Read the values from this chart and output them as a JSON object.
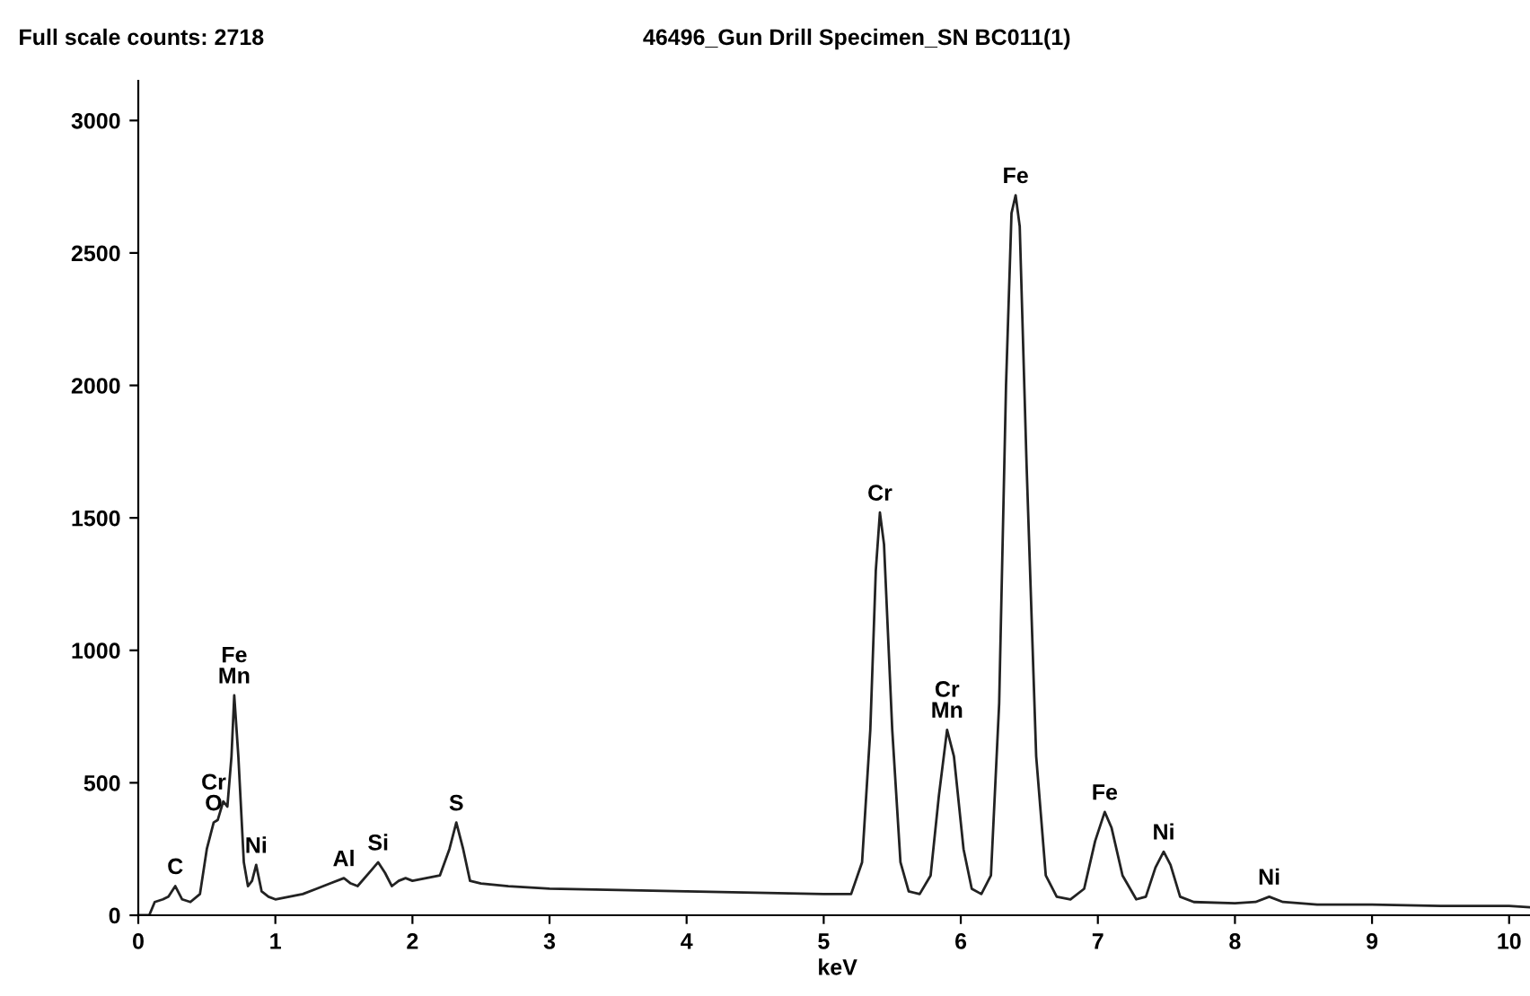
{
  "chart_data": {
    "type": "line",
    "title": "46496_Gun Drill Specimen_SN BC011(1)",
    "xlabel": "keV",
    "annotations": [
      "Full scale counts: 2718",
      {
        "text": "C",
        "x": 0.27,
        "y": 110
      },
      {
        "text": "Cr\nO",
        "x": 0.55,
        "y": 350
      },
      {
        "text": "Fe\nMn",
        "x": 0.7,
        "y": 830
      },
      {
        "text": "Ni",
        "x": 0.86,
        "y": 190
      },
      {
        "text": "Al",
        "x": 1.5,
        "y": 140
      },
      {
        "text": "Si",
        "x": 1.75,
        "y": 200
      },
      {
        "text": "S",
        "x": 2.32,
        "y": 350
      },
      {
        "text": "Cr",
        "x": 5.41,
        "y": 1520
      },
      {
        "text": "Cr\nMn",
        "x": 5.9,
        "y": 700
      },
      {
        "text": "Fe",
        "x": 6.4,
        "y": 2718
      },
      {
        "text": "Fe",
        "x": 7.05,
        "y": 390
      },
      {
        "text": "Ni",
        "x": 7.48,
        "y": 240
      },
      {
        "text": "Ni",
        "x": 8.25,
        "y": 70
      }
    ],
    "series": [
      {
        "color": "#222222",
        "x": [
          0,
          0.08,
          0.12,
          0.18,
          0.22,
          0.27,
          0.32,
          0.38,
          0.45,
          0.5,
          0.55,
          0.58,
          0.62,
          0.65,
          0.68,
          0.7,
          0.73,
          0.77,
          0.8,
          0.83,
          0.86,
          0.9,
          0.95,
          1.0,
          1.1,
          1.2,
          1.3,
          1.4,
          1.5,
          1.55,
          1.6,
          1.7,
          1.75,
          1.8,
          1.85,
          1.9,
          1.95,
          2.0,
          2.1,
          2.2,
          2.27,
          2.32,
          2.37,
          2.42,
          2.5,
          2.7,
          3.0,
          3.5,
          4.0,
          4.5,
          5.0,
          5.2,
          5.28,
          5.34,
          5.38,
          5.41,
          5.44,
          5.5,
          5.56,
          5.62,
          5.7,
          5.78,
          5.84,
          5.9,
          5.95,
          6.02,
          6.08,
          6.15,
          6.22,
          6.28,
          6.33,
          6.37,
          6.4,
          6.43,
          6.48,
          6.55,
          6.62,
          6.7,
          6.8,
          6.9,
          6.98,
          7.05,
          7.1,
          7.18,
          7.28,
          7.35,
          7.42,
          7.48,
          7.53,
          7.6,
          7.7,
          8.0,
          8.15,
          8.25,
          8.35,
          8.6,
          9.0,
          9.5,
          10.0,
          10.15
        ],
        "values": [
          0,
          0,
          50,
          60,
          70,
          110,
          60,
          50,
          80,
          250,
          350,
          360,
          430,
          410,
          600,
          830,
          600,
          200,
          110,
          130,
          190,
          90,
          70,
          60,
          70,
          80,
          100,
          120,
          140,
          120,
          110,
          170,
          200,
          160,
          110,
          130,
          140,
          130,
          140,
          150,
          250,
          350,
          250,
          130,
          120,
          110,
          100,
          95,
          90,
          85,
          80,
          80,
          200,
          700,
          1300,
          1520,
          1400,
          700,
          200,
          90,
          80,
          150,
          450,
          700,
          600,
          250,
          100,
          80,
          150,
          800,
          2000,
          2650,
          2718,
          2600,
          1700,
          600,
          150,
          70,
          60,
          100,
          280,
          390,
          330,
          150,
          60,
          70,
          180,
          240,
          190,
          70,
          50,
          45,
          50,
          70,
          50,
          40,
          40,
          35,
          35,
          30
        ]
      }
    ],
    "xlim": [
      0,
      10.2
    ],
    "ylim": [
      0,
      3150
    ],
    "xticks": [
      0,
      1,
      2,
      3,
      4,
      5,
      6,
      7,
      8,
      9,
      10
    ],
    "yticks": [
      0,
      500,
      1000,
      1500,
      2000,
      2500,
      3000
    ],
    "grid": false,
    "legend": false,
    "marker": "none",
    "line_style": "solid"
  }
}
